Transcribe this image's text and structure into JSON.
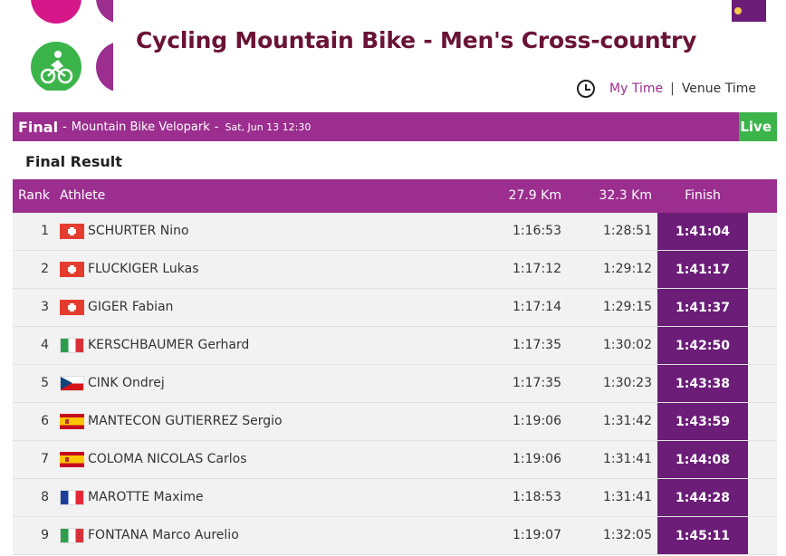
{
  "header": {
    "title": "Cycling Mountain Bike - Men's Cross-country",
    "time_toggle": {
      "my_time": "My Time",
      "separator": "|",
      "venue_time": "Venue Time"
    }
  },
  "event": {
    "phase": "Final",
    "dash1": "-",
    "venue": "Mountain Bike Velopark",
    "dash2": "-",
    "datetime": "Sat, Jun 13 12:30",
    "status": "Live"
  },
  "result_heading": "Final Result",
  "table": {
    "headers": {
      "rank": "Rank",
      "athlete": "Athlete",
      "split1": "27.9 Km",
      "split2": "32.3 Km",
      "finish": "Finish"
    },
    "rows": [
      {
        "rank": "1",
        "country": "sui",
        "athlete": "SCHURTER Nino",
        "split1": "1:16:53",
        "split2": "1:28:51",
        "finish": "1:41:04"
      },
      {
        "rank": "2",
        "country": "sui",
        "athlete": "FLUCKIGER Lukas",
        "split1": "1:17:12",
        "split2": "1:29:12",
        "finish": "1:41:17"
      },
      {
        "rank": "3",
        "country": "sui",
        "athlete": "GIGER Fabian",
        "split1": "1:17:14",
        "split2": "1:29:15",
        "finish": "1:41:37"
      },
      {
        "rank": "4",
        "country": "ita",
        "athlete": "KERSCHBAUMER Gerhard",
        "split1": "1:17:35",
        "split2": "1:30:02",
        "finish": "1:42:50"
      },
      {
        "rank": "5",
        "country": "cze",
        "athlete": "CINK Ondrej",
        "split1": "1:17:35",
        "split2": "1:30:23",
        "finish": "1:43:38"
      },
      {
        "rank": "6",
        "country": "esp",
        "athlete": "MANTECON GUTIERREZ Sergio",
        "split1": "1:19:06",
        "split2": "1:31:42",
        "finish": "1:43:59"
      },
      {
        "rank": "7",
        "country": "esp",
        "athlete": "COLOMA NICOLAS Carlos",
        "split1": "1:19:06",
        "split2": "1:31:41",
        "finish": "1:44:08"
      },
      {
        "rank": "8",
        "country": "fra",
        "athlete": "MAROTTE Maxime",
        "split1": "1:18:53",
        "split2": "1:31:41",
        "finish": "1:44:28"
      },
      {
        "rank": "9",
        "country": "ita",
        "athlete": "FONTANA Marco Aurelio",
        "split1": "1:19:07",
        "split2": "1:32:05",
        "finish": "1:45:11"
      }
    ]
  },
  "icons": {
    "sport_icons": [
      "sport-icon-pink",
      "sport-icon-purple",
      "cycling-mountain-bike-icon",
      "sport-icon-purple-2"
    ],
    "clock": "clock-icon"
  },
  "colors": {
    "accent": "#9b2e8f",
    "accent_dark": "#6b1d78",
    "title": "#6a1336",
    "live": "#3bb54a"
  }
}
